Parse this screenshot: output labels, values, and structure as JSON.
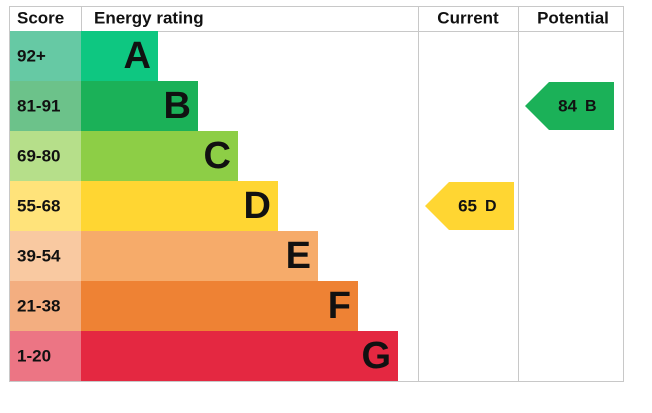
{
  "header": {
    "score": "Score",
    "rating": "Energy rating",
    "current": "Current",
    "potential": "Potential"
  },
  "bands": [
    {
      "range": "92+",
      "letter": "A",
      "color": "#0ec781",
      "score_color": "#66c9a4"
    },
    {
      "range": "81-91",
      "letter": "B",
      "color": "#1bb158",
      "score_color": "#6cc28a"
    },
    {
      "range": "69-80",
      "letter": "C",
      "color": "#8dce46",
      "score_color": "#b6df8a"
    },
    {
      "range": "55-68",
      "letter": "D",
      "color": "#ffd632",
      "score_color": "#ffe37a"
    },
    {
      "range": "39-54",
      "letter": "E",
      "color": "#f6ab6a",
      "score_color": "#f9c9a1"
    },
    {
      "range": "21-38",
      "letter": "F",
      "color": "#ee8234",
      "score_color": "#f3ae80"
    },
    {
      "range": "1-20",
      "letter": "G",
      "color": "#e42841",
      "score_color": "#ec7584"
    }
  ],
  "current": {
    "value": 65,
    "letter": "D"
  },
  "potential": {
    "value": 84,
    "letter": "B"
  }
}
